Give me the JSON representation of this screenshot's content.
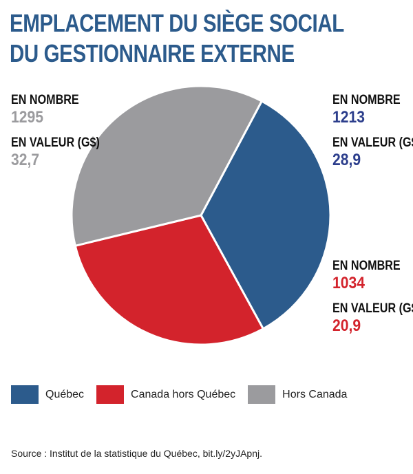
{
  "title": {
    "line1": "EMPLACEMENT DU SIÈGE SOCIAL",
    "line2": "DU GESTIONNAIRE EXTERNE"
  },
  "chart_data": {
    "type": "pie",
    "categories": [
      "Québec",
      "Canada hors Québec",
      "Hors Canada"
    ],
    "series": [
      {
        "values": [
          1213,
          1034,
          1295
        ]
      }
    ],
    "count_label": "EN NOMBRE",
    "value_label": "EN VALEUR (G$)",
    "counts": [
      "1213",
      "1034",
      "1295"
    ],
    "values_text": [
      "28,9",
      "20,9",
      "32,7"
    ],
    "values_gs": [
      28.9,
      20.9,
      32.7
    ],
    "colors": [
      "#2c5b8c",
      "#d3232c",
      "#9b9b9e"
    ],
    "legend": [
      "Québec",
      "Canada hors Québec",
      "Hors Canada"
    ],
    "legend_placement": "bottom-left",
    "start_angle_deg": -62
  },
  "source": "Source : Institut de la statistique du Québec, bit.ly/2yJApnj."
}
